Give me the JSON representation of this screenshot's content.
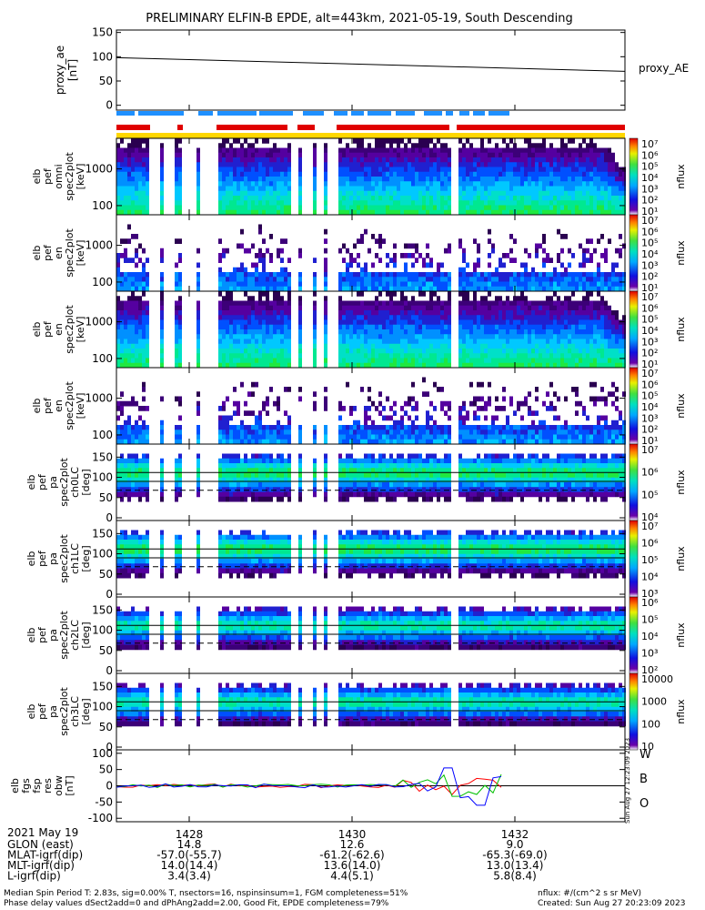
{
  "chart_data": {
    "type": "heatmap",
    "title": "PRELIMINARY ELFIN-B EPDE, alt=443km, 2021-05-19, South Descending",
    "time_axis": {
      "date": "2021 May 19",
      "ticks": [
        "1428",
        "1430",
        "1432"
      ]
    },
    "ephemeris": {
      "rows": [
        {
          "label": "GLON (east)",
          "values": [
            "14.8",
            "12.6",
            "9.0"
          ]
        },
        {
          "label": "MLAT-igrf(dip)",
          "values": [
            "-57.0(-55.7)",
            "-61.2(-62.6)",
            "-65.3(-69.0)"
          ]
        },
        {
          "label": "MLT-igrf(dip)",
          "values": [
            "14.0(14.4)",
            "13.6(14.0)",
            "13.0(13.4)"
          ]
        },
        {
          "label": "L-igrf(dip)",
          "values": [
            "3.4(3.4)",
            "4.4(5.1)",
            "5.8(8.4)"
          ]
        }
      ]
    },
    "proxy_ae": {
      "ylabel": [
        "proxy_ae",
        "[nT]"
      ],
      "right_label": "proxy_AE",
      "yticks": [
        "150",
        "100",
        "50",
        "0"
      ],
      "ylim": [
        -10,
        155
      ],
      "line_start": 98,
      "line_end": 70
    },
    "panels": [
      {
        "ylabel": [
          "elb",
          "pef",
          "omni",
          "spec2plot",
          "[keV]"
        ],
        "yticks": [
          "1000",
          "100"
        ],
        "cbar_ticks": [
          "10⁷",
          "10⁶",
          "10⁵",
          "10⁴",
          "10³",
          "10²",
          "10¹"
        ],
        "cbar_label": "nflux",
        "kind": "energy",
        "density": "high"
      },
      {
        "ylabel": [
          "elb",
          "pef",
          "en",
          "spec2plot",
          "[keV]"
        ],
        "yticks": [
          "1000",
          "100"
        ],
        "cbar_ticks": [
          "10⁷",
          "10⁶",
          "10⁵",
          "10⁴",
          "10³",
          "10²",
          "10¹"
        ],
        "cbar_label": "nflux",
        "kind": "energy",
        "density": "low"
      },
      {
        "ylabel": [
          "elb",
          "pef",
          "en",
          "spec2plot",
          "[keV]"
        ],
        "yticks": [
          "1000",
          "100"
        ],
        "cbar_ticks": [
          "10⁷",
          "10⁶",
          "10⁵",
          "10⁴",
          "10³",
          "10²",
          "10¹"
        ],
        "cbar_label": "nflux",
        "kind": "energy",
        "density": "high"
      },
      {
        "ylabel": [
          "elb",
          "pef",
          "en",
          "spec2plot",
          "[keV]"
        ],
        "yticks": [
          "1000",
          "100"
        ],
        "cbar_ticks": [
          "10⁷",
          "10⁶",
          "10⁵",
          "10⁴",
          "10³",
          "10²",
          "10¹"
        ],
        "cbar_label": "nflux",
        "kind": "energy",
        "density": "low"
      },
      {
        "ylabel": [
          "elb",
          "pef",
          "pa",
          "spec2plot",
          "ch0LC",
          "[deg]"
        ],
        "yticks": [
          "150",
          "100",
          "50",
          "0"
        ],
        "cbar_ticks": [
          "10⁷",
          "10⁶",
          "10⁵",
          "10⁴"
        ],
        "cbar_label": "nflux",
        "kind": "pa",
        "density": "high"
      },
      {
        "ylabel": [
          "elb",
          "pef",
          "pa",
          "spec2plot",
          "ch1LC",
          "[deg]"
        ],
        "yticks": [
          "150",
          "100",
          "50",
          "0"
        ],
        "cbar_ticks": [
          "10⁷",
          "10⁶",
          "10⁵",
          "10⁴",
          "10³"
        ],
        "cbar_label": "nflux",
        "kind": "pa",
        "density": "high"
      },
      {
        "ylabel": [
          "elb",
          "pef",
          "pa",
          "spec2plot",
          "ch2LC",
          "[deg]"
        ],
        "yticks": [
          "150",
          "100",
          "50",
          "0"
        ],
        "cbar_ticks": [
          "10⁶",
          "10⁵",
          "10⁴",
          "10³",
          "10²"
        ],
        "cbar_label": "nflux",
        "kind": "pa",
        "density": "mid"
      },
      {
        "ylabel": [
          "elb",
          "pef",
          "pa",
          "spec2plot",
          "ch3LC",
          "[deg]"
        ],
        "yticks": [
          "150",
          "100",
          "50",
          "0"
        ],
        "cbar_ticks": [
          "10000",
          "1000",
          "100",
          "10"
        ],
        "cbar_label": "nflux",
        "kind": "pa",
        "density": "mid"
      }
    ],
    "field_panel": {
      "ylabel": [
        "elb",
        "fgs",
        "fsp",
        "res",
        "obw",
        "[nT]"
      ],
      "yticks": [
        "100",
        "50",
        "0",
        "-50",
        "-100"
      ],
      "ylim": [
        -105,
        105
      ],
      "legend": [
        {
          "label": "W",
          "color": "#ff0000"
        },
        {
          "label": "B",
          "color": "#00c000"
        },
        {
          "label": "O",
          "color": "#0000ff"
        }
      ],
      "side_note": "Sun Aug 27 12:23:09 2023"
    },
    "footer": {
      "left1": "Median Spin Period T: 2.83s, sig=0.00% T, nsectors=16, nspinsinsum=1, FGM completeness=51%",
      "left2": "Phase delay values dSect2add=0 and dPhAng2add=2.00, Good Fit, EPDE completeness=79%",
      "right1": "nflux: #/(cm^2 s sr MeV)",
      "right2": "Created: Sun Aug 27 20:23:09 2023"
    }
  }
}
